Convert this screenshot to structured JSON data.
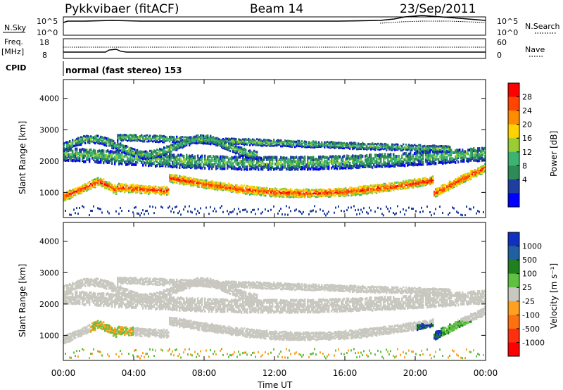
{
  "header": {
    "station": "Pykkvibaer (fitACF)",
    "beam": "Beam 14",
    "date": "23/Sep/2011"
  },
  "top_panels": {
    "nsky_label": "N.Sky",
    "nsky_ticks": [
      "10^5",
      "10^0"
    ],
    "nsearch_label": "N.Search",
    "nsearch_ticks": [
      "10^5",
      "10^0"
    ],
    "freq_label": "Freq.",
    "freq_unit": "[MHz]",
    "freq_ticks": [
      "18",
      "8"
    ],
    "nave_label": "Nave",
    "nave_ticks": [
      "60",
      "0"
    ],
    "cpid_label": "CPID",
    "cpid_text": "normal (fast stereo) 153"
  },
  "chart_data": [
    {
      "type": "heatmap",
      "name": "power",
      "ylabel": "Slant Range [km]",
      "yticks": [
        1000,
        2000,
        3000,
        4000
      ],
      "ylim": [
        200,
        4600
      ],
      "xlim": [
        0,
        24
      ],
      "colorbar": {
        "label": "Power [dB]",
        "ticks": [
          "28",
          "24",
          "20",
          "16",
          "12",
          "8",
          "4"
        ],
        "colors": [
          "#ff0000",
          "#ff4500",
          "#ff8c00",
          "#ffd200",
          "#9acd32",
          "#3cb371",
          "#2e8b57",
          "#1f3fa0",
          "#0000ff"
        ]
      }
    },
    {
      "type": "heatmap",
      "name": "velocity",
      "ylabel": "Slant Range [km]",
      "yticks": [
        1000,
        2000,
        3000,
        4000
      ],
      "ylim": [
        200,
        4600
      ],
      "xlim": [
        0,
        24
      ],
      "xlabel": "Time UT",
      "xticks": [
        "00:00",
        "04:00",
        "08:00",
        "12:00",
        "16:00",
        "20:00",
        "00:00"
      ],
      "colorbar": {
        "label": "Velocity [m s⁻¹]",
        "ticks": [
          "1000",
          "500",
          "100",
          "25",
          "-25",
          "-100",
          "-500",
          "-1000"
        ],
        "colors": [
          "#1030c0",
          "#2060a0",
          "#208020",
          "#60c040",
          "#c8c8c0",
          "#ffa020",
          "#ff7010",
          "#ff3010",
          "#ff0000"
        ]
      }
    }
  ]
}
